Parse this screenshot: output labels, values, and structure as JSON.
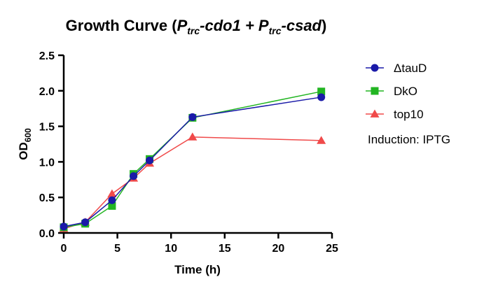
{
  "chart_data": {
    "type": "line",
    "title": {
      "prefix": "Growth Curve (",
      "p1": "P",
      "p1_sub": "trc",
      "gene1": "-cdo1 + ",
      "p2": "P",
      "p2_sub": "trc",
      "gene2": "-csad",
      "suffix": ")"
    },
    "xlabel": "Time (h)",
    "ylabel": {
      "main": "OD",
      "sub": "600"
    },
    "xlim": [
      0,
      25
    ],
    "ylim": [
      0,
      2.5
    ],
    "xticks": [
      0,
      5,
      10,
      15,
      20,
      25
    ],
    "yticks": [
      0.0,
      0.5,
      1.0,
      1.5,
      2.0,
      2.5
    ],
    "xtick_labels": [
      "0",
      "5",
      "10",
      "15",
      "20",
      "25"
    ],
    "ytick_labels": [
      "0.0",
      "0.5",
      "1.0",
      "1.5",
      "2.0",
      "2.5"
    ],
    "grid": false,
    "legend_position": "right",
    "annotation": "Induction: IPTG",
    "series": [
      {
        "name": "ΔtauD",
        "color": "#1a1aa8",
        "marker": "circle",
        "x": [
          0,
          2,
          4.5,
          6.5,
          8,
          12,
          24
        ],
        "y": [
          0.09,
          0.15,
          0.46,
          0.8,
          1.02,
          1.63,
          1.91
        ]
      },
      {
        "name": "DkO",
        "color": "#22b522",
        "marker": "square",
        "x": [
          0,
          2,
          4.5,
          6.5,
          8,
          12,
          24
        ],
        "y": [
          0.08,
          0.13,
          0.38,
          0.83,
          1.04,
          1.62,
          1.99
        ]
      },
      {
        "name": "top10",
        "color": "#f04a4a",
        "marker": "triangle",
        "x": [
          0,
          2,
          4.5,
          6.5,
          8,
          12,
          24
        ],
        "y": [
          0.06,
          0.15,
          0.55,
          0.77,
          0.98,
          1.35,
          1.3
        ]
      }
    ]
  }
}
